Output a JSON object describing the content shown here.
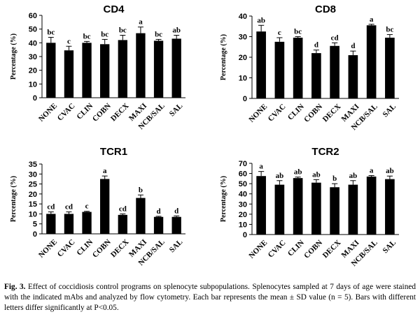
{
  "chart_data": [
    {
      "type": "bar",
      "title": "CD4",
      "ylabel": "Percentage (%)",
      "categories": [
        "NONE",
        "CVAC",
        "CLIN",
        "COBN",
        "DECX",
        "MAXI",
        "NCB/SAL",
        "SAL"
      ],
      "values": [
        40,
        34.5,
        40,
        39,
        42,
        47,
        41.5,
        43
      ],
      "errors": [
        4,
        3,
        1,
        3.5,
        3.5,
        4.5,
        1,
        2.5
      ],
      "letters": [
        "bc",
        "c",
        "bc",
        "bc",
        "bc",
        "a",
        "bc",
        "ab"
      ],
      "ylim": [
        0,
        60
      ],
      "yticks": [
        0,
        10,
        20,
        30,
        40,
        50,
        60
      ],
      "grid": false
    },
    {
      "type": "bar",
      "title": "CD8",
      "ylabel": "Percentage (%)",
      "categories": [
        "NONE",
        "CVAC",
        "CLIN",
        "COBN",
        "DECX",
        "MAXI",
        "NCB/SAL",
        "SAL"
      ],
      "values": [
        32.5,
        27.5,
        29.5,
        22,
        25.5,
        21,
        35.5,
        29.5
      ],
      "errors": [
        3,
        2,
        0.5,
        1.5,
        1.5,
        2,
        0.5,
        1.5
      ],
      "letters": [
        "ab",
        "c",
        "bc",
        "d",
        "cd",
        "d",
        "a",
        "bc"
      ],
      "ylim": [
        0,
        40
      ],
      "yticks": [
        0,
        10,
        20,
        30,
        40
      ],
      "grid": false
    },
    {
      "type": "bar",
      "title": "TCR1",
      "ylabel": "Percentage (%)",
      "categories": [
        "NONE",
        "CVAC",
        "CLIN",
        "COBN",
        "DECX",
        "MAXI",
        "NCB/SAL",
        "SAL"
      ],
      "values": [
        10,
        10,
        11,
        27.5,
        9.5,
        18,
        8.5,
        8.5
      ],
      "errors": [
        1,
        1,
        0.3,
        1.5,
        0.5,
        1.5,
        0.3,
        0.5
      ],
      "letters": [
        "cd",
        "cd",
        "c",
        "a",
        "cd",
        "b",
        "d",
        "d"
      ],
      "ylim": [
        0,
        35
      ],
      "yticks": [
        0,
        5,
        10,
        15,
        20,
        25,
        30,
        35
      ],
      "grid": false
    },
    {
      "type": "bar",
      "title": "TCR2",
      "ylabel": "Percentage (%)",
      "categories": [
        "NONE",
        "CVAC",
        "CLIN",
        "COBN",
        "DECX",
        "MAXI",
        "NCB/SAL",
        "SAL"
      ],
      "values": [
        57.5,
        49,
        55.5,
        51,
        46.5,
        49,
        57,
        54.5
      ],
      "errors": [
        4.5,
        4,
        1,
        3,
        3.5,
        4,
        1,
        3
      ],
      "letters": [
        "a",
        "ab",
        "ab",
        "ab",
        "b",
        "ab",
        "a",
        "ab"
      ],
      "ylim": [
        0,
        70
      ],
      "yticks": [
        0,
        10,
        20,
        30,
        40,
        50,
        60,
        70
      ],
      "grid": false
    }
  ],
  "caption": {
    "label": "Fig. 3.",
    "text": " Effect of coccidiosis control programs on splenocyte subpopulations. Splenocytes sampled at 7 days of age were stained with the indicated mAbs and analyzed by flow cytometry. Each bar represents the mean ± SD value (n = 5). Bars with different letters differ significantly at P<0.05."
  }
}
